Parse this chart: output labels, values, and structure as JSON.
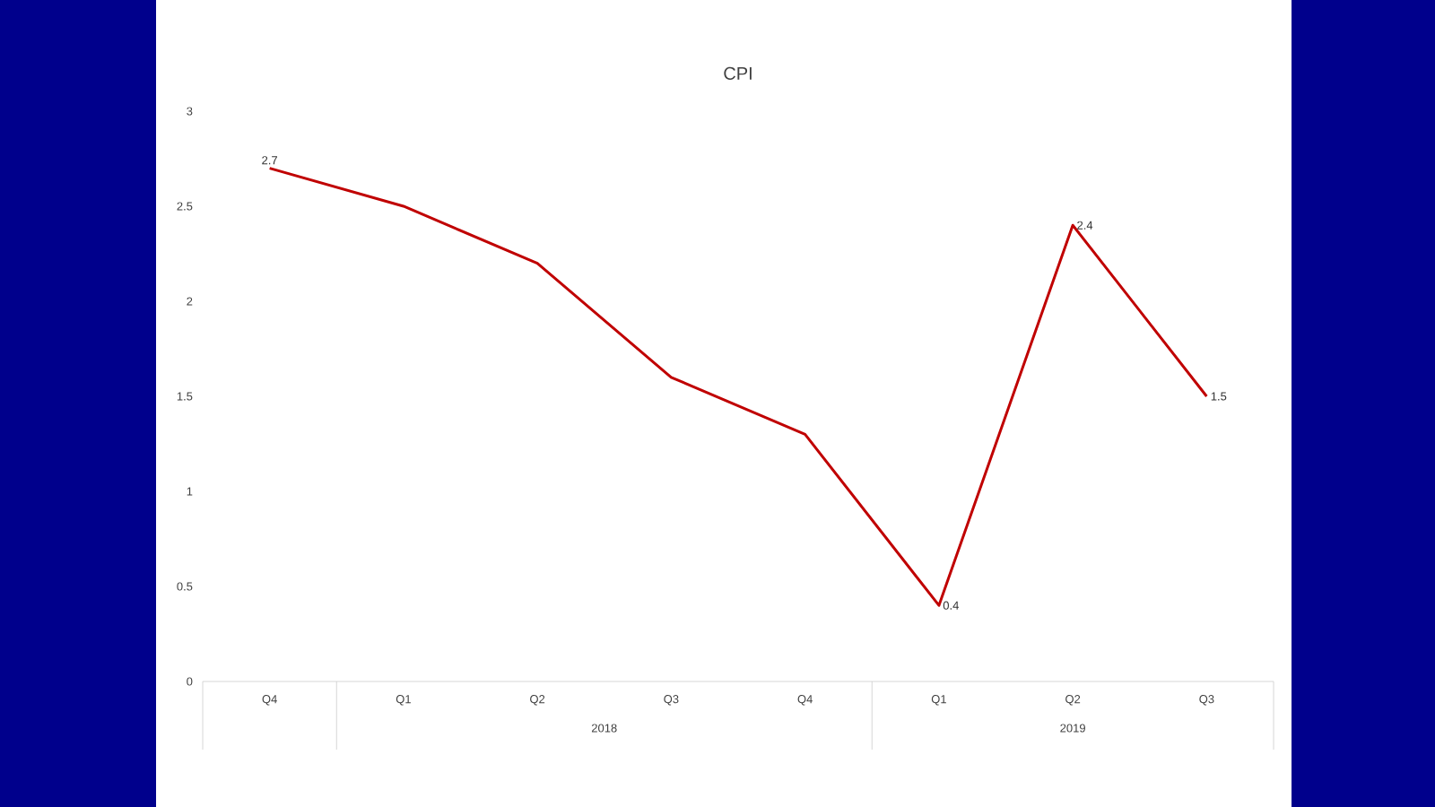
{
  "chart_data": {
    "type": "line",
    "title": "CPI",
    "categories": [
      "Q4",
      "Q1",
      "Q2",
      "Q3",
      "Q4",
      "Q1",
      "Q2",
      "Q3"
    ],
    "series": [
      {
        "color": "#c00000",
        "values": [
          2.7,
          2.5,
          2.2,
          1.6,
          1.3,
          0.4,
          2.4,
          1.5
        ],
        "value_labels": [
          "2.7",
          null,
          null,
          null,
          null,
          "0.4",
          "2.4",
          "1.5"
        ]
      }
    ],
    "annotations": [
      "2018",
      "2019"
    ],
    "ylim": [
      0,
      3
    ],
    "yticks": [
      0,
      0.5,
      1,
      1.5,
      2,
      2.5,
      3
    ],
    "grid": false,
    "marker": "none",
    "line_style": "solid"
  }
}
